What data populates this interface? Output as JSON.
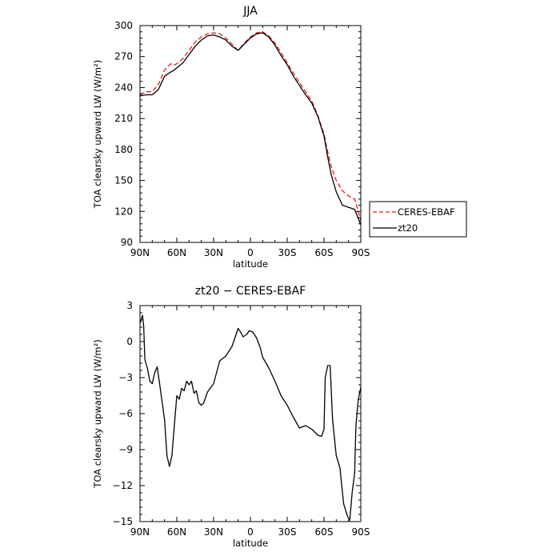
{
  "chart_data": [
    {
      "type": "line",
      "title": "JJA",
      "xlabel": "latitude",
      "ylabel": "TOA clearsky upward LW (W/m²)",
      "xlim": [
        90,
        -90
      ],
      "ylim": [
        90,
        300
      ],
      "xticks": [
        90,
        60,
        30,
        0,
        -30,
        -60,
        -90
      ],
      "xtick_labels": [
        "90N",
        "60N",
        "30N",
        "0",
        "30S",
        "60S",
        "90S"
      ],
      "yticks": [
        90,
        120,
        150,
        180,
        210,
        240,
        270,
        300
      ],
      "ytick_labels": [
        "90",
        "120",
        "150",
        "180",
        "210",
        "240",
        "270",
        "300"
      ],
      "legend_position": "right",
      "series": [
        {
          "name": "CERES-EBAF",
          "color": "#e41a1c",
          "dash": "dashed",
          "x": [
            90,
            85,
            80,
            75,
            70,
            65,
            62,
            60,
            55,
            50,
            45,
            40,
            35,
            30,
            25,
            20,
            15,
            10,
            5,
            0,
            -5,
            -10,
            -15,
            -20,
            -25,
            -30,
            -35,
            -40,
            -45,
            -50,
            -55,
            -60,
            -63,
            -66,
            -70,
            -75,
            -80,
            -85,
            -88,
            -90
          ],
          "y": [
            233,
            236,
            236,
            243,
            257,
            263,
            262,
            263,
            268,
            276,
            284,
            289,
            292,
            293,
            292,
            288,
            282,
            276,
            283,
            289,
            293,
            294,
            290,
            283,
            274,
            264,
            254,
            245,
            236,
            227,
            213,
            195,
            178,
            163,
            150,
            140,
            135,
            132,
            120,
            111
          ]
        },
        {
          "name": "zt20",
          "color": "#000000",
          "dash": "solid",
          "x": [
            90,
            85,
            80,
            75,
            70,
            65,
            62,
            60,
            55,
            50,
            45,
            40,
            35,
            30,
            25,
            20,
            15,
            10,
            5,
            0,
            -5,
            -10,
            -15,
            -20,
            -25,
            -30,
            -35,
            -40,
            -45,
            -50,
            -55,
            -60,
            -63,
            -66,
            -70,
            -75,
            -80,
            -85,
            -88,
            -90
          ],
          "y": [
            232,
            233,
            233,
            238,
            251,
            255,
            257,
            259,
            264,
            272,
            280,
            286,
            290,
            291,
            289,
            286,
            280,
            276,
            282,
            288,
            292,
            293,
            289,
            281,
            271,
            262,
            251,
            242,
            233,
            225,
            212,
            193,
            173,
            155,
            139,
            126,
            124,
            122,
            113,
            107
          ]
        }
      ]
    },
    {
      "type": "line",
      "title": "zt20 − CERES-EBAF",
      "xlabel": "latitude",
      "ylabel": "TOA clearsky upward LW (W/m²)",
      "xlim": [
        90,
        -90
      ],
      "ylim": [
        -15,
        3
      ],
      "xticks": [
        90,
        60,
        30,
        0,
        -30,
        -60,
        -90
      ],
      "xtick_labels": [
        "90N",
        "60N",
        "30N",
        "0",
        "30S",
        "60S",
        "90S"
      ],
      "yticks": [
        -15,
        -12,
        -9,
        -6,
        -3,
        0,
        3
      ],
      "ytick_labels": [
        "−15",
        "−12",
        "−9",
        "−6",
        "−3",
        "0",
        "3"
      ],
      "series": [
        {
          "color": "#000000",
          "dash": "solid",
          "x": [
            90,
            88,
            87,
            86,
            84,
            82,
            80,
            78,
            76,
            74,
            72,
            70,
            68,
            66,
            64,
            62,
            60,
            58,
            56,
            54,
            52,
            50,
            48,
            46,
            44,
            42,
            40,
            38,
            35,
            30,
            25,
            20,
            15,
            12,
            10,
            8,
            6,
            3,
            1,
            -2,
            -5,
            -8,
            -10,
            -15,
            -20,
            -25,
            -30,
            -35,
            -40,
            -45,
            -50,
            -55,
            -58,
            -60,
            -61,
            -63,
            -65,
            -67,
            -70,
            -73,
            -76,
            -79,
            -81,
            -83,
            -85,
            -86,
            -88,
            -90
          ],
          "y": [
            1.5,
            2.2,
            1.3,
            -1.5,
            -2.2,
            -3.3,
            -3.5,
            -2.6,
            -2.1,
            -3.5,
            -5.0,
            -6.5,
            -9.5,
            -10.4,
            -9.5,
            -7.0,
            -4.5,
            -4.8,
            -3.9,
            -4.1,
            -3.3,
            -3.6,
            -3.3,
            -4.3,
            -4.1,
            -5.1,
            -5.3,
            -5.1,
            -4.2,
            -3.5,
            -1.6,
            -1.2,
            -0.4,
            0.5,
            1.1,
            0.8,
            0.4,
            0.6,
            0.9,
            0.8,
            0.3,
            -0.5,
            -1.3,
            -2.2,
            -3.3,
            -4.5,
            -5.3,
            -6.3,
            -7.2,
            -7.0,
            -7.3,
            -7.8,
            -7.9,
            -7.3,
            -3.0,
            -2.0,
            -2.0,
            -6.5,
            -9.5,
            -10.5,
            -13.5,
            -14.5,
            -14.9,
            -12.5,
            -11.0,
            -7.0,
            -4.8,
            -3.8
          ]
        }
      ]
    }
  ]
}
